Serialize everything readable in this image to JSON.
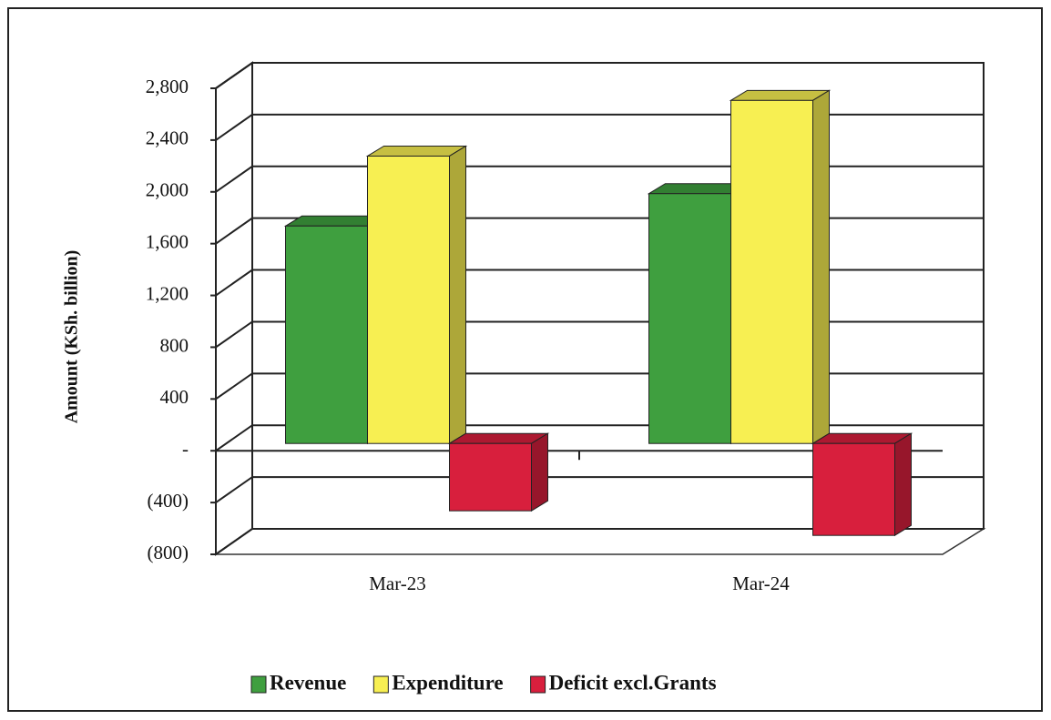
{
  "chart_data": {
    "type": "bar3d",
    "y_label": "Amount (KSh. billion)",
    "categories": [
      "Mar-23",
      "Mar-24"
    ],
    "series": [
      {
        "name": "Revenue",
        "color": "#3f9f3f",
        "values": [
          1680,
          1930
        ]
      },
      {
        "name": "Expenditure",
        "color": "#f7ef52",
        "values": [
          2220,
          2650
        ]
      },
      {
        "name": "Deficit excl.Grants",
        "color": "#d81f3d",
        "values": [
          -520,
          -710
        ]
      }
    ],
    "ylim": [
      -800,
      2800
    ],
    "yticks": [
      {
        "value": -800,
        "label": "(800)"
      },
      {
        "value": -400,
        "label": "(400)"
      },
      {
        "value": 0,
        "label": "-"
      },
      400,
      800,
      {
        "value": 1200,
        "label": "1,200"
      },
      {
        "value": 1600,
        "label": "1,600"
      },
      {
        "value": 2000,
        "label": "2,000"
      },
      {
        "value": 2400,
        "label": "2,400"
      },
      {
        "value": 2800,
        "label": "2,800"
      }
    ],
    "grid": true,
    "legend": "bottom"
  }
}
